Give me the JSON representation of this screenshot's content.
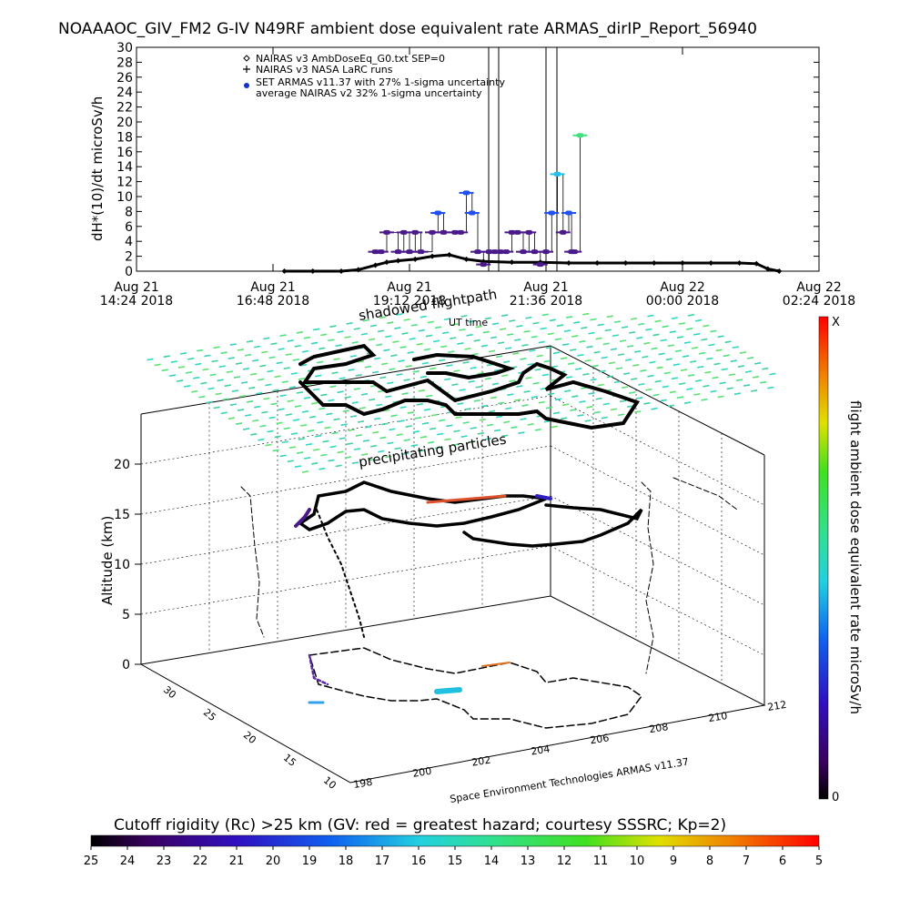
{
  "chart_data": [
    {
      "type": "line",
      "title": "NOAAAOC_GIV_FM2 G-IV   N49RF  ambient dose equivalent rate ARMAS_dirIP_Report_56940",
      "xlabel": "UT time",
      "ylabel": "dH*(10)/dt microSv/h",
      "ylim": [
        0,
        30
      ],
      "yticks": [
        "0",
        "2",
        "4",
        "6",
        "8",
        "10",
        "12",
        "14",
        "16",
        "18",
        "20",
        "22",
        "24",
        "26",
        "28",
        "30"
      ],
      "xlim": [
        "2018-08-21T14:24",
        "2018-08-22T02:24"
      ],
      "xticks": [
        {
          "line1": "Aug 21",
          "line2": "14:24 2018"
        },
        {
          "line1": "Aug 21",
          "line2": "16:48 2018"
        },
        {
          "line1": "Aug 21",
          "line2": "19:12 2018"
        },
        {
          "line1": "Aug 21",
          "line2": "21:36 2018"
        },
        {
          "line1": "Aug 22",
          "line2": "00:00 2018"
        },
        {
          "line1": "Aug 22",
          "line2": "02:24 2018"
        }
      ],
      "legend": [
        {
          "marker": "diamond",
          "label": "NAIRAS v3 AmbDoseEq_G0.txt SEP=0"
        },
        {
          "marker": "plus",
          "label": "NAIRAS v3 NASA LaRC runs"
        },
        {
          "marker": "dot",
          "label": "SET ARMAS v11.37 with 27% 1-sigma uncertainty"
        },
        {
          "marker": "none",
          "label": "average NAIRAS v2 32% 1-sigma uncertainty"
        }
      ],
      "series": [
        {
          "name": "NAIRAS v3 AmbDoseEq_G0.txt SEP=0",
          "x_hours": [
            17.0,
            17.5,
            18.0,
            18.3,
            18.6,
            18.8,
            19.0,
            19.3,
            19.6,
            19.9,
            20.2,
            20.5,
            21.0,
            21.5,
            22.0,
            22.5,
            23.0,
            23.5,
            24.0,
            24.5,
            25.0,
            25.3,
            25.5,
            25.7
          ],
          "values": [
            0,
            0,
            0,
            0.2,
            0.8,
            1.2,
            1.4,
            1.6,
            2.0,
            2.2,
            1.6,
            1.3,
            1.2,
            1.2,
            1.1,
            1.1,
            1.1,
            1.1,
            1.1,
            1.1,
            1.1,
            1.0,
            0.3,
            0
          ]
        },
        {
          "name": "SET ARMAS v11.37 with 27% 1-sigma uncertainty",
          "x_hours": [
            18.6,
            18.7,
            18.8,
            19.0,
            19.1,
            19.2,
            19.3,
            19.4,
            19.6,
            19.7,
            19.8,
            20.0,
            20.1,
            20.2,
            20.3,
            20.4,
            20.5,
            20.6,
            20.7,
            20.8,
            20.9,
            21.0,
            21.1,
            21.2,
            21.3,
            21.4,
            21.5,
            21.6,
            21.7,
            21.8,
            21.9,
            22.0,
            22.05,
            22.1,
            22.2
          ],
          "values": [
            2.6,
            2.6,
            5.2,
            2.6,
            5.2,
            2.6,
            5.2,
            2.6,
            5.2,
            7.8,
            5.2,
            5.2,
            5.2,
            10.5,
            7.8,
            2.6,
            0.9,
            2.6,
            2.6,
            2.6,
            2.6,
            5.2,
            5.2,
            2.6,
            5.2,
            2.6,
            0.9,
            2.6,
            7.8,
            13.0,
            5.2,
            7.8,
            2.6,
            2.6,
            18.2
          ]
        }
      ]
    },
    {
      "type": "scatter",
      "title": "shadowed flightpath",
      "annotation": "precipitating particles",
      "zlabel": "Altitude (km)",
      "zticks": [
        "0",
        "5",
        "10",
        "15",
        "20"
      ],
      "lat_ticks": [
        "10",
        "15",
        "20",
        "25",
        "30"
      ],
      "lon_ticks": [
        "198",
        "200",
        "202",
        "204",
        "206",
        "208",
        "210",
        "212"
      ],
      "credit": "Space Environment Technologies ARMAS v11.37",
      "colorbar": {
        "label": "flight ambient dose equivalent rate microSv/h",
        "max_label": "X",
        "min_label": "0"
      },
      "cutoff_colorbar": {
        "title": "Cutoff rigidity (Rc) >25 km (GV: red = greatest hazard; courtesy SSSRC; Kp=2)",
        "ticks": [
          "25",
          "24",
          "23",
          "22",
          "21",
          "20",
          "19",
          "18",
          "17",
          "16",
          "15",
          "14",
          "13",
          "12",
          "11",
          "10",
          "9",
          "8",
          "7",
          "6",
          "5"
        ]
      }
    }
  ]
}
